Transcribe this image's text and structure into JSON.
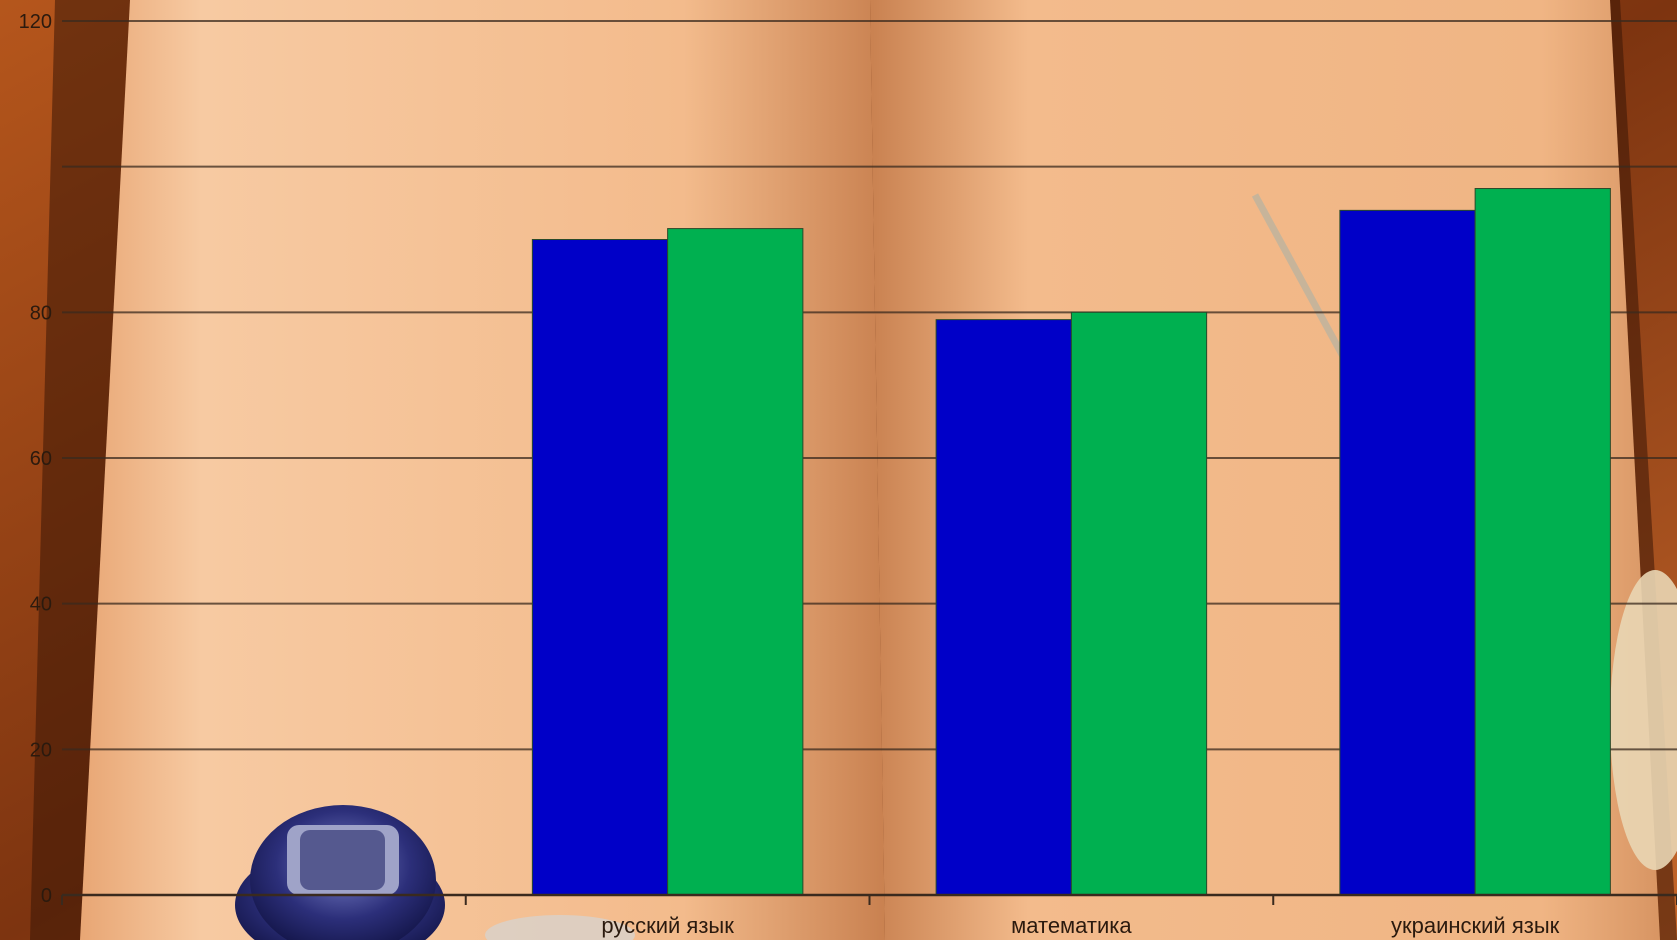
{
  "chart_data": {
    "type": "bar",
    "categories": [
      "",
      "русский язык",
      "математика",
      "украинский язык"
    ],
    "series": [
      {
        "color": "#0000c8",
        "values": [
          null,
          90,
          79,
          94
        ]
      },
      {
        "color": "#00b050",
        "values": [
          null,
          91.5,
          80,
          97
        ]
      }
    ],
    "ylim": [
      0,
      120
    ],
    "yticks": [
      0,
      20,
      40,
      60,
      80,
      120
    ],
    "ygrid": [
      20,
      40,
      60,
      80,
      100,
      120
    ],
    "grid": true,
    "legend": "none"
  },
  "background": {
    "wood_color": "#8a3f12",
    "page_color": "#f2b98a",
    "page_center_color": "#d98b55"
  }
}
